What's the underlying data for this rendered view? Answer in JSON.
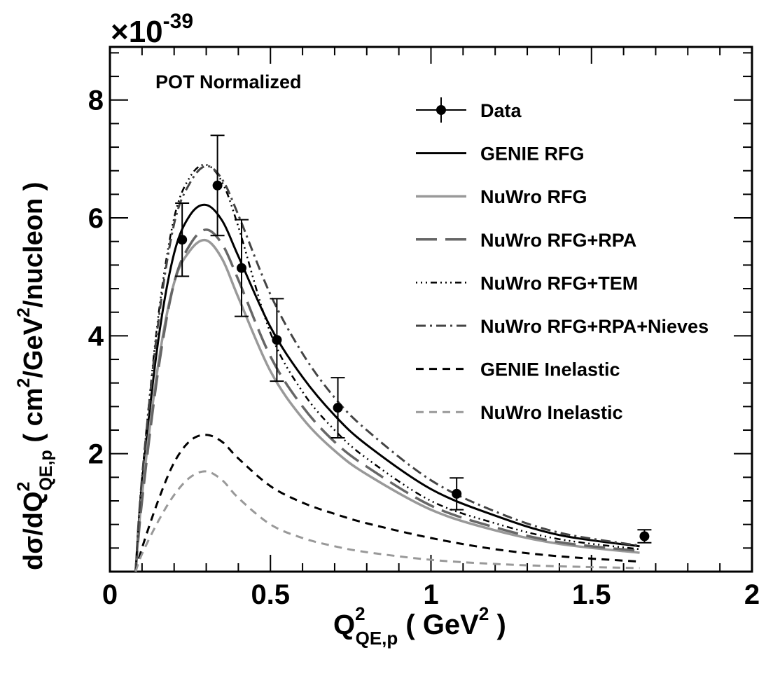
{
  "chart_data": {
    "type": "line",
    "annotation": "POT Normalized",
    "multiplier": {
      "prefix": "×10",
      "exponent": "-39"
    },
    "xlabel": {
      "main": "Q",
      "sup": "2",
      "sub": "QE,p",
      "unit_open": " ( GeV",
      "unit_sup": "2",
      "unit_close": " )"
    },
    "ylabel": {
      "pre": "dσ/dQ",
      "sup": "2",
      "sub": "QE,p",
      "unit_open": " ( cm",
      "unit_sup1": "2",
      "unit_mid": "/GeV",
      "unit_sup2": "2",
      "unit_close": "/nucleon )"
    },
    "xlim": [
      0,
      2
    ],
    "ylim": [
      0,
      8.9
    ],
    "x_ticks": [
      0,
      0.5,
      1,
      1.5,
      2
    ],
    "x_tick_labels": [
      "0",
      "0.5",
      "1",
      "1.5",
      "2"
    ],
    "y_ticks": [
      2,
      4,
      6,
      8
    ],
    "y_tick_labels": [
      "2",
      "4",
      "6",
      "8"
    ],
    "grid": false,
    "legend_position": "top-right",
    "data_points": {
      "name": "Data",
      "points": [
        {
          "x": 0.225,
          "y": 5.63,
          "err": 0.62
        },
        {
          "x": 0.335,
          "y": 6.55,
          "err": 0.85
        },
        {
          "x": 0.41,
          "y": 5.15,
          "err": 0.82
        },
        {
          "x": 0.52,
          "y": 3.93,
          "err": 0.7
        },
        {
          "x": 0.71,
          "y": 2.78,
          "err": 0.51
        },
        {
          "x": 1.08,
          "y": 1.32,
          "err": 0.27
        },
        {
          "x": 1.665,
          "y": 0.6,
          "err": 0.11
        }
      ]
    },
    "series": [
      {
        "name": "GENIE RFG",
        "color": "#000000",
        "dash": "",
        "width": 3,
        "x": [
          0.08,
          0.1,
          0.15,
          0.2,
          0.25,
          0.3,
          0.35,
          0.4,
          0.5,
          0.6,
          0.7,
          0.8,
          1.0,
          1.2,
          1.4,
          1.65
        ],
        "y": [
          0,
          1.5,
          3.9,
          5.4,
          6.05,
          6.22,
          5.95,
          5.35,
          4.15,
          3.3,
          2.65,
          2.15,
          1.4,
          0.95,
          0.62,
          0.43
        ]
      },
      {
        "name": "NuWro RFG",
        "color": "#999999",
        "dash": "",
        "width": 3.5,
        "x": [
          0.08,
          0.1,
          0.15,
          0.2,
          0.25,
          0.3,
          0.35,
          0.4,
          0.5,
          0.6,
          0.7,
          0.8,
          1.0,
          1.2,
          1.4,
          1.65
        ],
        "y": [
          0,
          1.3,
          3.5,
          4.9,
          5.45,
          5.62,
          5.3,
          4.65,
          3.4,
          2.6,
          2.05,
          1.65,
          1.05,
          0.7,
          0.47,
          0.32
        ]
      },
      {
        "name": "NuWro RFG+RPA",
        "color": "#666666",
        "dash": "30,12",
        "width": 3.5,
        "x": [
          0.08,
          0.1,
          0.15,
          0.2,
          0.25,
          0.3,
          0.35,
          0.4,
          0.5,
          0.6,
          0.7,
          0.8,
          1.0,
          1.2,
          1.4,
          1.65
        ],
        "y": [
          0,
          1.2,
          3.4,
          4.9,
          5.55,
          5.8,
          5.55,
          4.95,
          3.65,
          2.8,
          2.2,
          1.78,
          1.12,
          0.75,
          0.5,
          0.35
        ]
      },
      {
        "name": "NuWro RFG+TEM",
        "color": "#000000",
        "dash": "2,5,2,5,2,5,9,5",
        "width": 2.5,
        "x": [
          0.08,
          0.1,
          0.15,
          0.2,
          0.25,
          0.3,
          0.35,
          0.4,
          0.5,
          0.6,
          0.7,
          0.8,
          1.0,
          1.2,
          1.4,
          1.65
        ],
        "y": [
          0,
          1.6,
          4.3,
          6.0,
          6.7,
          6.9,
          6.6,
          5.85,
          4.05,
          3.05,
          2.4,
          1.92,
          1.2,
          0.82,
          0.55,
          0.38
        ]
      },
      {
        "name": "NuWro RFG+RPA+Nieves",
        "color": "#444444",
        "dash": "14,6,3,6",
        "width": 3,
        "x": [
          0.08,
          0.1,
          0.15,
          0.2,
          0.25,
          0.3,
          0.35,
          0.4,
          0.5,
          0.6,
          0.7,
          0.8,
          1.0,
          1.2,
          1.4,
          1.65
        ],
        "y": [
          0,
          1.6,
          4.2,
          5.9,
          6.6,
          6.88,
          6.65,
          6.05,
          4.7,
          3.7,
          2.95,
          2.4,
          1.55,
          1.02,
          0.66,
          0.44
        ]
      },
      {
        "name": "GENIE Inelastic",
        "color": "#000000",
        "dash": "11,8",
        "width": 3,
        "x": [
          0.08,
          0.1,
          0.15,
          0.2,
          0.25,
          0.3,
          0.35,
          0.4,
          0.5,
          0.6,
          0.7,
          0.8,
          1.0,
          1.2,
          1.4,
          1.65
        ],
        "y": [
          0,
          0.4,
          1.2,
          1.85,
          2.22,
          2.32,
          2.2,
          1.92,
          1.45,
          1.17,
          0.98,
          0.82,
          0.57,
          0.38,
          0.26,
          0.17
        ]
      },
      {
        "name": "NuWro Inelastic",
        "color": "#999999",
        "dash": "11,8",
        "width": 3,
        "x": [
          0.08,
          0.1,
          0.15,
          0.2,
          0.25,
          0.3,
          0.35,
          0.4,
          0.5,
          0.6,
          0.7,
          0.8,
          1.0,
          1.2,
          1.4,
          1.65
        ],
        "y": [
          0,
          0.3,
          0.85,
          1.3,
          1.6,
          1.7,
          1.55,
          1.25,
          0.8,
          0.57,
          0.43,
          0.33,
          0.2,
          0.13,
          0.09,
          0.06
        ]
      }
    ]
  }
}
